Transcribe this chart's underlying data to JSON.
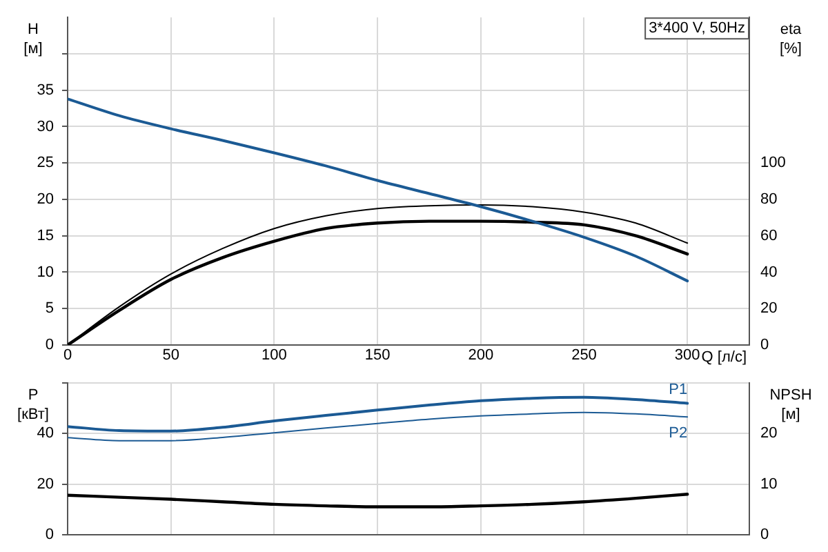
{
  "chart_data": [
    {
      "type": "line",
      "title": "3*400 V, 50Hz",
      "xlabel": "Q [л/с]",
      "ylabel": "H [м]",
      "y2label": "eta [%]",
      "xlim": [
        0,
        330
      ],
      "xticks": [
        0,
        50,
        100,
        150,
        200,
        250,
        300
      ],
      "ylim": [
        0,
        45
      ],
      "yticks": [
        0,
        5,
        10,
        15,
        20,
        25,
        30,
        35,
        {
          "value": 40,
          "label": null
        }
      ],
      "y2lim": [
        0,
        180
      ],
      "y2ticks": [
        0,
        20,
        40,
        60,
        80,
        100
      ],
      "grid": true,
      "legend": false,
      "marker": "none",
      "line_style": "solid",
      "series": [
        {
          "color": "#1b5a94",
          "x": [
            0,
            25,
            50,
            75,
            100,
            125,
            150,
            175,
            200,
            225,
            250,
            275,
            300
          ],
          "values": [
            33.8,
            31.5,
            29.7,
            28.1,
            26.4,
            24.6,
            22.6,
            20.8,
            19.0,
            17.0,
            14.8,
            12.2,
            8.8
          ]
        },
        {
          "color": "#000000",
          "axis": "y2",
          "x": [
            0,
            25,
            50,
            75,
            100,
            125,
            150,
            175,
            200,
            225,
            250,
            275,
            300
          ],
          "values": [
            0,
            21,
            39,
            53,
            64,
            71,
            75,
            76.5,
            77,
            76,
            73,
            67,
            56
          ]
        },
        {
          "color": "#000000",
          "axis": "y2",
          "x": [
            0,
            25,
            50,
            75,
            100,
            125,
            150,
            175,
            200,
            225,
            250,
            275,
            300
          ],
          "values": [
            0,
            19,
            36,
            48,
            57,
            64,
            67,
            68,
            68,
            67.5,
            66,
            60,
            50
          ]
        }
      ]
    },
    {
      "type": "line",
      "ylabel": "P [кВт]",
      "y2label": "NPSH [м]",
      "xlim": [
        0,
        330
      ],
      "xticks": [
        0,
        50,
        100,
        150,
        200,
        250,
        300
      ],
      "ylim": [
        0,
        60
      ],
      "yticks": [
        0,
        20,
        40,
        {
          "value": 60,
          "label": null
        }
      ],
      "y2lim": [
        0,
        30
      ],
      "y2ticks": [
        0,
        10,
        20
      ],
      "grid": true,
      "legend": false,
      "marker": "none",
      "line_style": "solid",
      "tick_labels": "y",
      "series": [
        {
          "name": "P1",
          "color": "#1b5a94",
          "x": [
            0,
            25,
            50,
            75,
            100,
            125,
            150,
            175,
            200,
            225,
            250,
            275,
            300
          ],
          "values": [
            42.8,
            41.2,
            41.0,
            42.5,
            45.0,
            47.2,
            49.3,
            51.3,
            53.0,
            54.0,
            54.4,
            53.5,
            52.0
          ]
        },
        {
          "name": "P2",
          "color": "#1b5a94",
          "x": [
            0,
            25,
            50,
            75,
            100,
            125,
            150,
            175,
            200,
            225,
            250,
            275,
            300
          ],
          "values": [
            38.4,
            37.2,
            37.2,
            38.5,
            40.3,
            42.2,
            44.0,
            45.7,
            47.0,
            47.8,
            48.4,
            47.8,
            46.6
          ]
        },
        {
          "color": "#000000",
          "axis": "y2",
          "x": [
            0,
            25,
            50,
            75,
            100,
            125,
            150,
            175,
            200,
            225,
            250,
            275,
            300
          ],
          "values": [
            7.8,
            7.4,
            7.0,
            6.5,
            6.0,
            5.7,
            5.5,
            5.5,
            5.7,
            6.0,
            6.5,
            7.2,
            8.0
          ]
        }
      ]
    }
  ]
}
